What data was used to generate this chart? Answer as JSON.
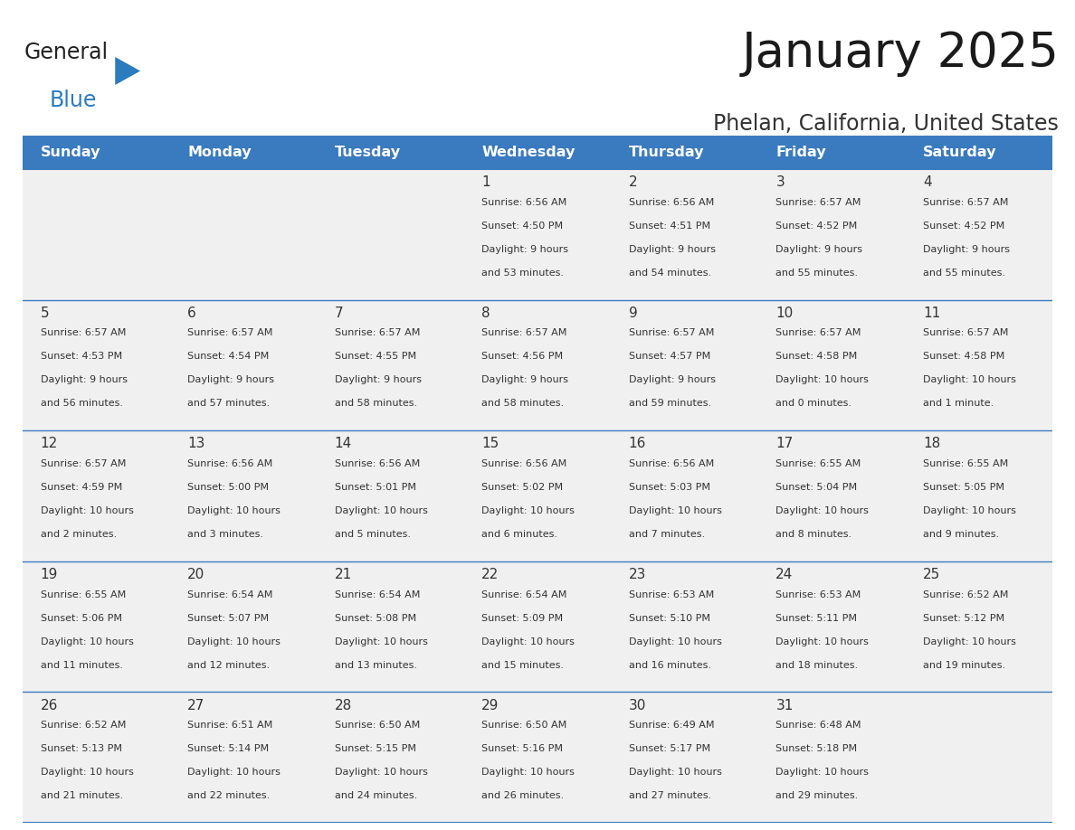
{
  "title": "January 2025",
  "subtitle": "Phelan, California, United States",
  "header_bg": "#3a7abf",
  "header_text_color": "#ffffff",
  "cell_bg": "#f0f0f0",
  "day_headers": [
    "Sunday",
    "Monday",
    "Tuesday",
    "Wednesday",
    "Thursday",
    "Friday",
    "Saturday"
  ],
  "days": [
    {
      "day": 1,
      "col": 3,
      "row": 0,
      "sunrise": "6:56 AM",
      "sunset": "4:50 PM",
      "daylight": "9 hours and 53 minutes"
    },
    {
      "day": 2,
      "col": 4,
      "row": 0,
      "sunrise": "6:56 AM",
      "sunset": "4:51 PM",
      "daylight": "9 hours and 54 minutes"
    },
    {
      "day": 3,
      "col": 5,
      "row": 0,
      "sunrise": "6:57 AM",
      "sunset": "4:52 PM",
      "daylight": "9 hours and 55 minutes"
    },
    {
      "day": 4,
      "col": 6,
      "row": 0,
      "sunrise": "6:57 AM",
      "sunset": "4:52 PM",
      "daylight": "9 hours and 55 minutes"
    },
    {
      "day": 5,
      "col": 0,
      "row": 1,
      "sunrise": "6:57 AM",
      "sunset": "4:53 PM",
      "daylight": "9 hours and 56 minutes"
    },
    {
      "day": 6,
      "col": 1,
      "row": 1,
      "sunrise": "6:57 AM",
      "sunset": "4:54 PM",
      "daylight": "9 hours and 57 minutes"
    },
    {
      "day": 7,
      "col": 2,
      "row": 1,
      "sunrise": "6:57 AM",
      "sunset": "4:55 PM",
      "daylight": "9 hours and 58 minutes"
    },
    {
      "day": 8,
      "col": 3,
      "row": 1,
      "sunrise": "6:57 AM",
      "sunset": "4:56 PM",
      "daylight": "9 hours and 58 minutes"
    },
    {
      "day": 9,
      "col": 4,
      "row": 1,
      "sunrise": "6:57 AM",
      "sunset": "4:57 PM",
      "daylight": "9 hours and 59 minutes"
    },
    {
      "day": 10,
      "col": 5,
      "row": 1,
      "sunrise": "6:57 AM",
      "sunset": "4:58 PM",
      "daylight": "10 hours and 0 minutes"
    },
    {
      "day": 11,
      "col": 6,
      "row": 1,
      "sunrise": "6:57 AM",
      "sunset": "4:58 PM",
      "daylight": "10 hours and 1 minute"
    },
    {
      "day": 12,
      "col": 0,
      "row": 2,
      "sunrise": "6:57 AM",
      "sunset": "4:59 PM",
      "daylight": "10 hours and 2 minutes"
    },
    {
      "day": 13,
      "col": 1,
      "row": 2,
      "sunrise": "6:56 AM",
      "sunset": "5:00 PM",
      "daylight": "10 hours and 3 minutes"
    },
    {
      "day": 14,
      "col": 2,
      "row": 2,
      "sunrise": "6:56 AM",
      "sunset": "5:01 PM",
      "daylight": "10 hours and 5 minutes"
    },
    {
      "day": 15,
      "col": 3,
      "row": 2,
      "sunrise": "6:56 AM",
      "sunset": "5:02 PM",
      "daylight": "10 hours and 6 minutes"
    },
    {
      "day": 16,
      "col": 4,
      "row": 2,
      "sunrise": "6:56 AM",
      "sunset": "5:03 PM",
      "daylight": "10 hours and 7 minutes"
    },
    {
      "day": 17,
      "col": 5,
      "row": 2,
      "sunrise": "6:55 AM",
      "sunset": "5:04 PM",
      "daylight": "10 hours and 8 minutes"
    },
    {
      "day": 18,
      "col": 6,
      "row": 2,
      "sunrise": "6:55 AM",
      "sunset": "5:05 PM",
      "daylight": "10 hours and 9 minutes"
    },
    {
      "day": 19,
      "col": 0,
      "row": 3,
      "sunrise": "6:55 AM",
      "sunset": "5:06 PM",
      "daylight": "10 hours and 11 minutes"
    },
    {
      "day": 20,
      "col": 1,
      "row": 3,
      "sunrise": "6:54 AM",
      "sunset": "5:07 PM",
      "daylight": "10 hours and 12 minutes"
    },
    {
      "day": 21,
      "col": 2,
      "row": 3,
      "sunrise": "6:54 AM",
      "sunset": "5:08 PM",
      "daylight": "10 hours and 13 minutes"
    },
    {
      "day": 22,
      "col": 3,
      "row": 3,
      "sunrise": "6:54 AM",
      "sunset": "5:09 PM",
      "daylight": "10 hours and 15 minutes"
    },
    {
      "day": 23,
      "col": 4,
      "row": 3,
      "sunrise": "6:53 AM",
      "sunset": "5:10 PM",
      "daylight": "10 hours and 16 minutes"
    },
    {
      "day": 24,
      "col": 5,
      "row": 3,
      "sunrise": "6:53 AM",
      "sunset": "5:11 PM",
      "daylight": "10 hours and 18 minutes"
    },
    {
      "day": 25,
      "col": 6,
      "row": 3,
      "sunrise": "6:52 AM",
      "sunset": "5:12 PM",
      "daylight": "10 hours and 19 minutes"
    },
    {
      "day": 26,
      "col": 0,
      "row": 4,
      "sunrise": "6:52 AM",
      "sunset": "5:13 PM",
      "daylight": "10 hours and 21 minutes"
    },
    {
      "day": 27,
      "col": 1,
      "row": 4,
      "sunrise": "6:51 AM",
      "sunset": "5:14 PM",
      "daylight": "10 hours and 22 minutes"
    },
    {
      "day": 28,
      "col": 2,
      "row": 4,
      "sunrise": "6:50 AM",
      "sunset": "5:15 PM",
      "daylight": "10 hours and 24 minutes"
    },
    {
      "day": 29,
      "col": 3,
      "row": 4,
      "sunrise": "6:50 AM",
      "sunset": "5:16 PM",
      "daylight": "10 hours and 26 minutes"
    },
    {
      "day": 30,
      "col": 4,
      "row": 4,
      "sunrise": "6:49 AM",
      "sunset": "5:17 PM",
      "daylight": "10 hours and 27 minutes"
    },
    {
      "day": 31,
      "col": 5,
      "row": 4,
      "sunrise": "6:48 AM",
      "sunset": "5:18 PM",
      "daylight": "10 hours and 29 minutes"
    }
  ],
  "logo_general_color": "#222222",
  "logo_blue_color": "#2b7bbf",
  "logo_triangle_color": "#2b7bbf",
  "num_rows": 5,
  "num_cols": 7,
  "line_color": "#3a7abf",
  "text_color": "#333333"
}
